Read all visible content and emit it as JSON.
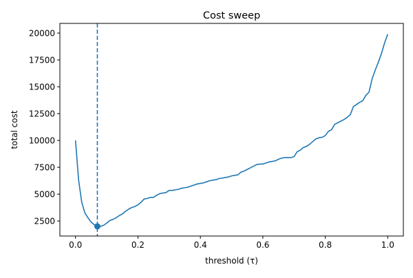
{
  "chart_data": {
    "type": "line",
    "title": "Cost sweep",
    "xlabel": "threshold (τ)",
    "ylabel": "total cost",
    "xlim": [
      -0.05,
      1.05
    ],
    "ylim": [
      1100,
      20900
    ],
    "grid": false,
    "xticks": [
      0.0,
      0.2,
      0.4,
      0.6,
      0.8,
      1.0
    ],
    "xtick_labels": [
      "0.0",
      "0.2",
      "0.4",
      "0.6",
      "0.8",
      "1.0"
    ],
    "yticks": [
      2500,
      5000,
      7500,
      10000,
      12500,
      15000,
      17500,
      20000
    ],
    "ytick_labels": [
      "2500",
      "5000",
      "7500",
      "10000",
      "12500",
      "15000",
      "17500",
      "20000"
    ],
    "series": [
      {
        "color": "#1f77b4",
        "x": [
          0.0,
          0.01,
          0.02,
          0.03,
          0.04,
          0.05,
          0.06,
          0.07,
          0.08,
          0.09,
          0.1,
          0.11,
          0.12,
          0.13,
          0.14,
          0.15,
          0.16,
          0.17,
          0.18,
          0.19,
          0.2,
          0.21,
          0.22,
          0.23,
          0.24,
          0.25,
          0.26,
          0.27,
          0.28,
          0.29,
          0.3,
          0.31,
          0.32,
          0.33,
          0.34,
          0.35,
          0.36,
          0.37,
          0.38,
          0.39,
          0.4,
          0.41,
          0.42,
          0.43,
          0.44,
          0.45,
          0.46,
          0.47,
          0.48,
          0.49,
          0.5,
          0.51,
          0.52,
          0.53,
          0.54,
          0.55,
          0.56,
          0.57,
          0.58,
          0.59,
          0.6,
          0.61,
          0.62,
          0.63,
          0.64,
          0.65,
          0.66,
          0.67,
          0.68,
          0.69,
          0.7,
          0.71,
          0.72,
          0.73,
          0.74,
          0.75,
          0.76,
          0.77,
          0.78,
          0.79,
          0.8,
          0.81,
          0.82,
          0.83,
          0.84,
          0.85,
          0.86,
          0.87,
          0.88,
          0.89,
          0.9,
          0.91,
          0.92,
          0.93,
          0.94,
          0.95,
          0.96,
          0.97,
          0.98,
          0.99,
          1.0
        ],
        "y": [
          10000,
          6300,
          4250,
          3250,
          2800,
          2400,
          2150,
          2000,
          2000,
          2100,
          2300,
          2550,
          2650,
          2800,
          3000,
          3150,
          3400,
          3600,
          3750,
          3850,
          4000,
          4250,
          4550,
          4600,
          4700,
          4700,
          4900,
          5050,
          5100,
          5150,
          5350,
          5350,
          5400,
          5450,
          5550,
          5600,
          5650,
          5750,
          5850,
          5950,
          6000,
          6050,
          6150,
          6250,
          6300,
          6350,
          6450,
          6500,
          6550,
          6600,
          6700,
          6750,
          6800,
          7050,
          7150,
          7300,
          7450,
          7600,
          7750,
          7800,
          7800,
          7900,
          8000,
          8050,
          8100,
          8250,
          8350,
          8400,
          8400,
          8400,
          8500,
          8950,
          9100,
          9350,
          9450,
          9650,
          9900,
          10150,
          10250,
          10300,
          10450,
          10850,
          11000,
          11500,
          11650,
          11800,
          11950,
          12150,
          12400,
          13150,
          13350,
          13550,
          13700,
          14200,
          14500,
          15750,
          16550,
          17300,
          18100,
          19100,
          19900
        ]
      }
    ],
    "optimum": {
      "x": 0.07,
      "y": 2000,
      "color": "#1f77b4"
    },
    "vline": {
      "x": 0.07,
      "style": "dashed",
      "color": "#1f77b4"
    }
  }
}
